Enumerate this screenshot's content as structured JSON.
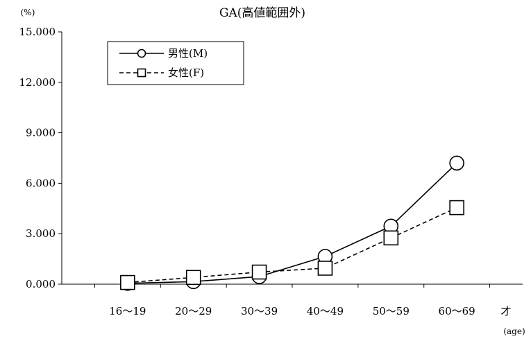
{
  "chart_data": {
    "type": "line",
    "title": "GA(高値範囲外)",
    "ylabel": "(%)",
    "xlabel": "才",
    "xlabel_sub": "(age)",
    "categories": [
      "16～19",
      "20～29",
      "30～39",
      "40～49",
      "50～59",
      "60～69"
    ],
    "ylim": [
      0,
      15
    ],
    "yticks": [
      "0.000",
      "3.000",
      "6.000",
      "9.000",
      "12.000",
      "15.000"
    ],
    "grid": false,
    "legend_position": "top-left",
    "series": [
      {
        "name": "男性(M)",
        "marker": "circle",
        "line": "solid",
        "values": [
          0.05,
          0.15,
          0.45,
          1.65,
          3.45,
          7.2
        ]
      },
      {
        "name": "女性(F)",
        "marker": "square",
        "line": "dashed",
        "values": [
          0.1,
          0.4,
          0.72,
          0.95,
          2.75,
          4.55
        ]
      }
    ]
  }
}
